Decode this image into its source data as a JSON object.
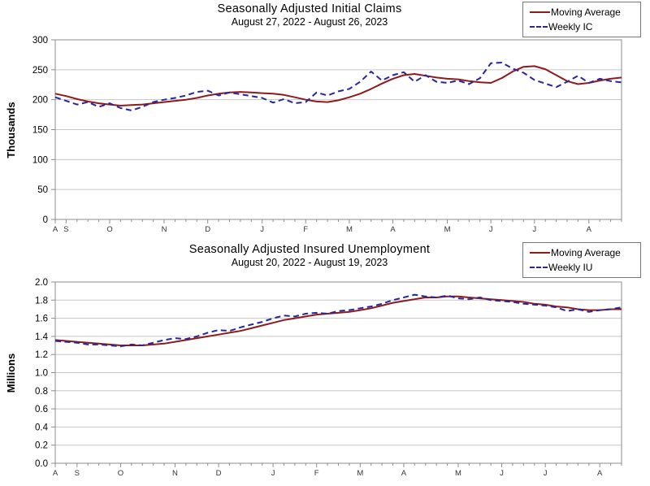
{
  "figure": {
    "background": "#ffffff"
  },
  "colors": {
    "moving_average": "#8e1b1b",
    "weekly": "#26269e",
    "grid": "#c6c6c6",
    "frame": "#8c8c8c",
    "tick_text": "#000000",
    "month_text": "#333333"
  },
  "chart_data": [
    {
      "type": "line",
      "title": "Seasonally Adjusted Initial Claims",
      "subtitle": "August 27, 2022 - August 26, 2023",
      "ylabel": "Thousands",
      "xlabel": "",
      "ylim": [
        0,
        300
      ],
      "ytick_step": 50,
      "yticks": [
        "0",
        "50",
        "100",
        "150",
        "200",
        "250",
        "300"
      ],
      "grid": true,
      "legend_position": "top-right",
      "n_points": 53,
      "x_unit": "week",
      "x_month_labels": [
        "A",
        "S",
        "O",
        "N",
        "D",
        "J",
        "F",
        "M",
        "A",
        "M",
        "J",
        "J",
        "A"
      ],
      "x_month_week_index": [
        0,
        1,
        5,
        10,
        14,
        19,
        23,
        27,
        31,
        36,
        40,
        44,
        49
      ],
      "series": [
        {
          "name": "Moving Average",
          "style": "solid",
          "color": "#8e1b1b",
          "values": [
            210,
            206,
            201,
            197,
            194,
            192,
            190,
            191,
            192,
            194,
            196,
            198,
            200,
            203,
            207,
            210,
            212,
            213,
            212,
            211,
            210,
            208,
            204,
            200,
            197,
            196,
            199,
            204,
            210,
            218,
            227,
            235,
            241,
            243,
            240,
            237,
            235,
            234,
            231,
            229,
            228,
            236,
            247,
            255,
            256,
            251,
            241,
            231,
            226,
            228,
            232,
            235,
            237
          ]
        },
        {
          "name": "Weekly IC",
          "style": "dashed",
          "color": "#26269e",
          "values": [
            204,
            198,
            192,
            196,
            188,
            194,
            186,
            182,
            188,
            196,
            200,
            203,
            207,
            213,
            215,
            207,
            212,
            209,
            206,
            203,
            195,
            201,
            194,
            196,
            212,
            207,
            214,
            218,
            230,
            247,
            232,
            241,
            246,
            230,
            241,
            230,
            228,
            232,
            226,
            236,
            261,
            262,
            252,
            245,
            233,
            227,
            221,
            230,
            240,
            228,
            235,
            231,
            229
          ]
        }
      ]
    },
    {
      "type": "line",
      "title": "Seasonally Adjusted Insured Unemployment",
      "subtitle": "August 20, 2022 - August 19, 2023",
      "ylabel": "Millions",
      "xlabel": "",
      "ylim": [
        0,
        2.0
      ],
      "ytick_step": 0.2,
      "yticks": [
        "0.0",
        "0.2",
        "0.4",
        "0.6",
        "0.8",
        "1.0",
        "1.2",
        "1.4",
        "1.6",
        "1.8",
        "2.0"
      ],
      "grid": true,
      "legend_position": "top-right",
      "n_points": 53,
      "x_unit": "week",
      "x_month_labels": [
        "A",
        "S",
        "O",
        "N",
        "D",
        "J",
        "F",
        "M",
        "A",
        "M",
        "J",
        "J",
        "A"
      ],
      "x_month_week_index": [
        0,
        2,
        6,
        11,
        15,
        20,
        24,
        28,
        32,
        37,
        41,
        45,
        50
      ],
      "series": [
        {
          "name": "Moving Average",
          "style": "solid",
          "color": "#8e1b1b",
          "values": [
            1.36,
            1.35,
            1.34,
            1.33,
            1.32,
            1.31,
            1.3,
            1.3,
            1.3,
            1.31,
            1.32,
            1.34,
            1.36,
            1.38,
            1.4,
            1.42,
            1.44,
            1.46,
            1.49,
            1.52,
            1.55,
            1.58,
            1.6,
            1.62,
            1.64,
            1.65,
            1.66,
            1.67,
            1.69,
            1.71,
            1.74,
            1.77,
            1.79,
            1.81,
            1.83,
            1.83,
            1.84,
            1.84,
            1.83,
            1.82,
            1.81,
            1.8,
            1.79,
            1.78,
            1.76,
            1.75,
            1.73,
            1.72,
            1.7,
            1.69,
            1.69,
            1.7,
            1.7
          ]
        },
        {
          "name": "Weekly IU",
          "style": "dashed",
          "color": "#26269e",
          "values": [
            1.35,
            1.34,
            1.33,
            1.31,
            1.31,
            1.3,
            1.29,
            1.31,
            1.3,
            1.33,
            1.36,
            1.38,
            1.37,
            1.4,
            1.44,
            1.47,
            1.46,
            1.5,
            1.53,
            1.56,
            1.6,
            1.63,
            1.62,
            1.65,
            1.66,
            1.65,
            1.68,
            1.69,
            1.71,
            1.73,
            1.76,
            1.8,
            1.83,
            1.86,
            1.84,
            1.83,
            1.85,
            1.82,
            1.81,
            1.83,
            1.8,
            1.79,
            1.78,
            1.76,
            1.75,
            1.74,
            1.72,
            1.68,
            1.7,
            1.67,
            1.69,
            1.7,
            1.72
          ]
        }
      ]
    }
  ]
}
